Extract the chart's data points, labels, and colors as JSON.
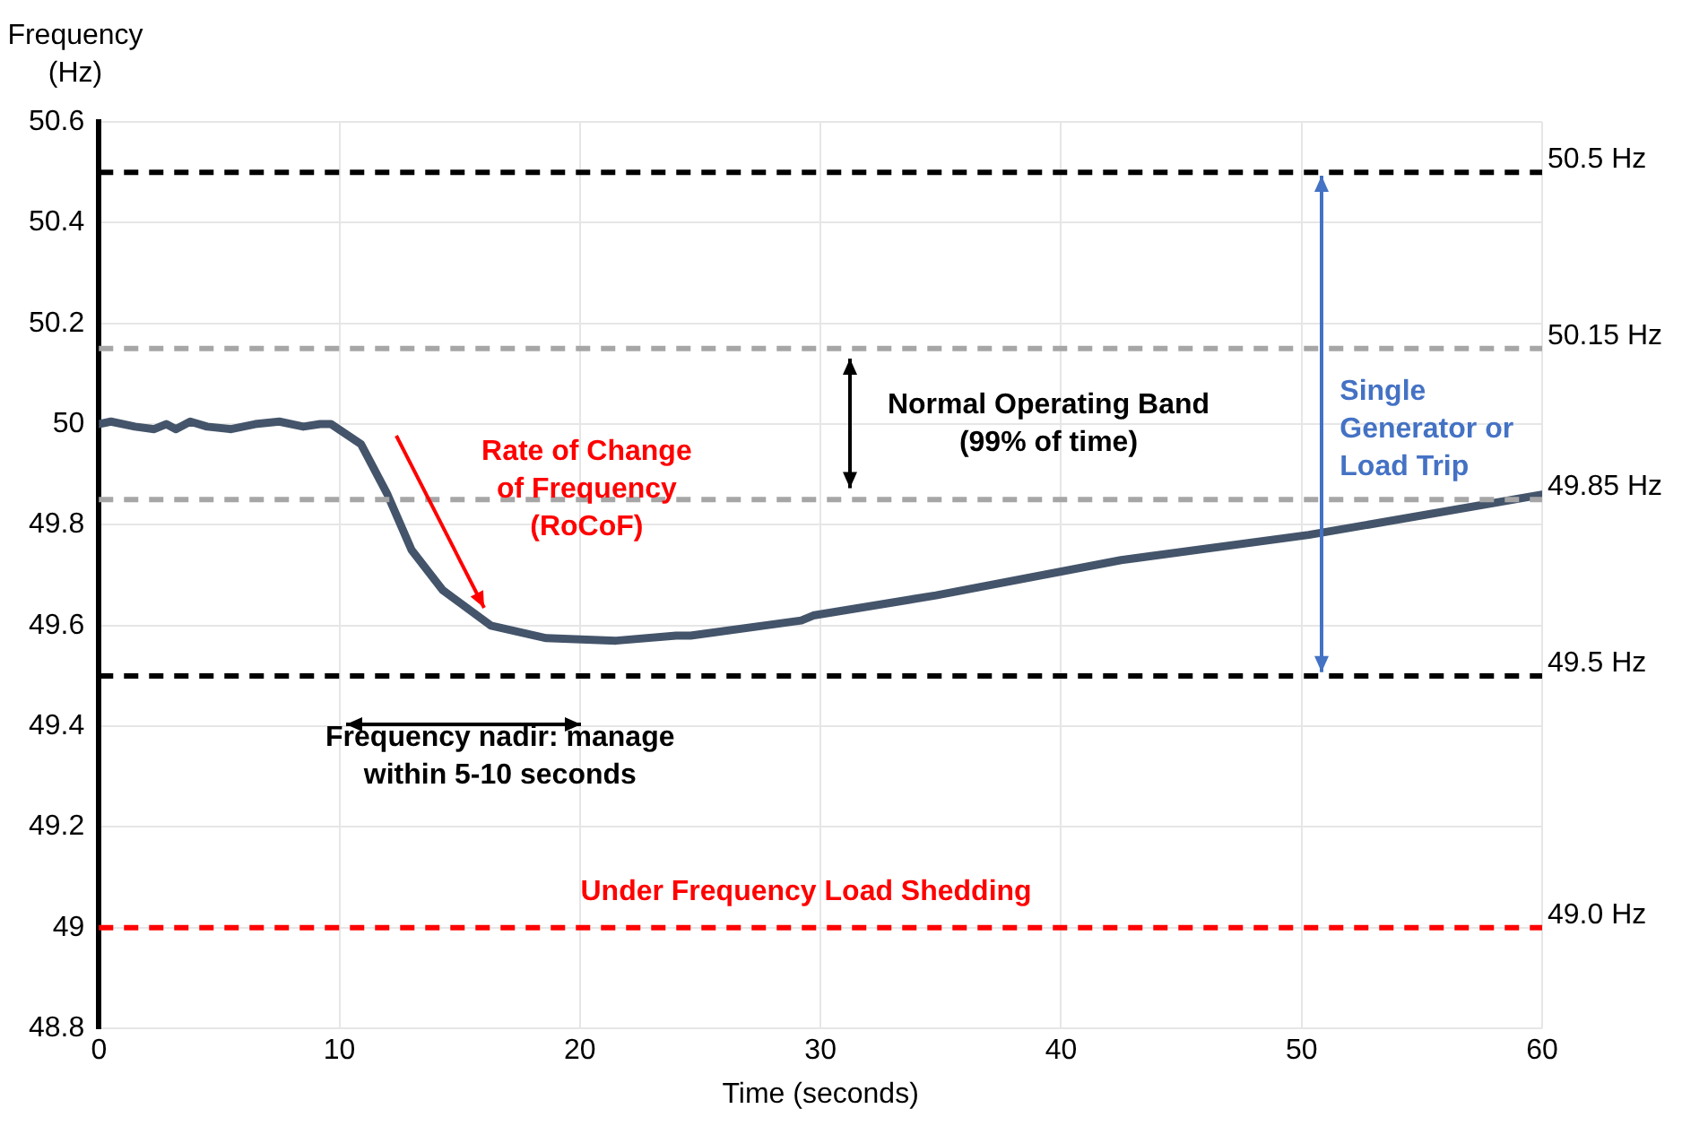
{
  "chart_data": {
    "type": "line",
    "xlabel": "Time (seconds)",
    "ylabel": "Frequency\n(Hz)",
    "x": [
      0,
      0.5,
      1.5,
      2.3,
      2.8,
      3.2,
      3.8,
      4.5,
      5.5,
      6.5,
      7.5,
      8.5,
      9.2,
      9.65,
      10.9,
      12,
      13,
      14.3,
      16.3,
      18.6,
      21.5,
      24,
      24.6,
      29.2,
      29.7,
      34.8,
      42.5,
      50.3,
      60
    ],
    "series": [
      {
        "color": "#44546a",
        "values": [
          50.0,
          50.005,
          49.995,
          49.99,
          50.0,
          49.99,
          50.005,
          49.995,
          49.99,
          50.0,
          50.005,
          49.995,
          50.0,
          50.0,
          49.96,
          49.86,
          49.75,
          49.67,
          49.6,
          49.575,
          49.57,
          49.58,
          49.58,
          49.61,
          49.62,
          49.66,
          49.73,
          49.78,
          49.86
        ]
      }
    ],
    "xlim": [
      0,
      60
    ],
    "xticks": [
      0,
      10,
      20,
      30,
      40,
      50,
      60
    ],
    "ylim": [
      48.8,
      50.6
    ],
    "yticks": [
      48.8,
      49,
      49.2,
      49.4,
      49.6,
      49.8,
      50,
      50.2,
      50.4,
      50.6
    ],
    "grid": true,
    "legend": false,
    "marker": "none",
    "line_style": "solid",
    "ref_lines": [
      {
        "axis": "y",
        "value": 50.5,
        "label": "50.5 Hz",
        "color": "#000000",
        "line_style": "dashed"
      },
      {
        "axis": "y",
        "value": 50.15,
        "label": "50.15 Hz",
        "color": "#a6a6a6",
        "line_style": "dashed"
      },
      {
        "axis": "y",
        "value": 49.85,
        "label": "49.85 Hz",
        "color": "#a6a6a6",
        "line_style": "dashed"
      },
      {
        "axis": "y",
        "value": 49.5,
        "label": "49.5 Hz",
        "color": "#000000",
        "line_style": "dashed"
      },
      {
        "axis": "y",
        "value": 49.0,
        "label": "49.0 Hz",
        "color": "#ff0000",
        "line_style": "dashed"
      }
    ],
    "annotations": [
      "Rate of Change\nof Frequency\n(RoCoF)",
      "Normal Operating Band\n(99% of time)",
      "Single\nGenerator or\nLoad Trip",
      "Frequency nadir: manage\nwithin 5-10 seconds",
      "Under Frequency Load Shedding"
    ]
  }
}
